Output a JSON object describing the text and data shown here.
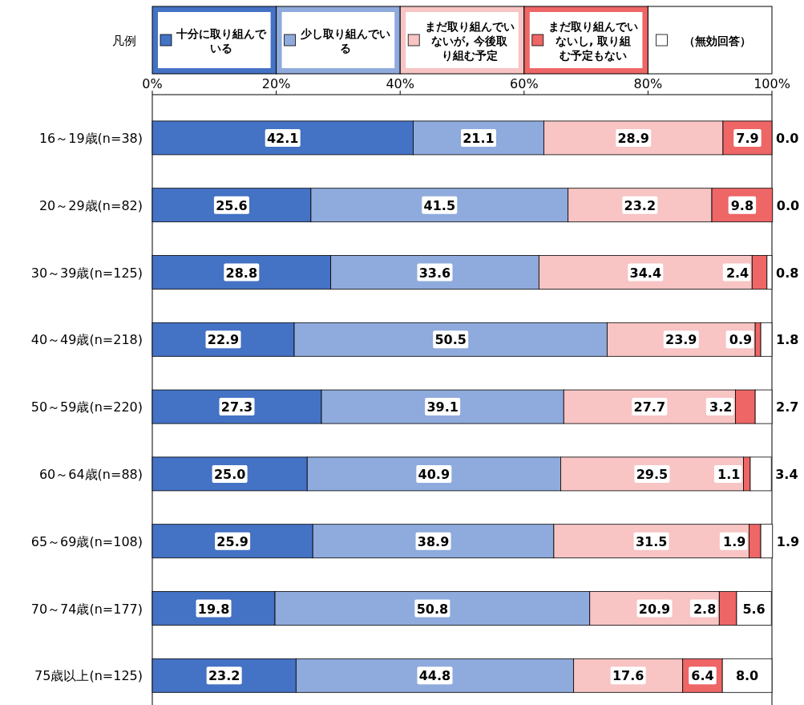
{
  "chart_data": {
    "type": "bar",
    "orientation": "horizontal",
    "stacked": true,
    "legend": "top",
    "legend_title": "凡例",
    "grid": false,
    "categories": [
      "16～19歳(n=38)",
      "20～29歳(n=82)",
      "30～39歳(n=125)",
      "40～49歳(n=218)",
      "50～59歳(n=220)",
      "60～64歳(n=88)",
      "65～69歳(n=108)",
      "70～74歳(n=177)",
      "75歳以上(n=125)"
    ],
    "xlim": [
      0,
      100
    ],
    "xticks": [
      {
        "value": 0,
        "label": "0%"
      },
      {
        "value": 20,
        "label": "20%"
      },
      {
        "value": 40,
        "label": "40%"
      },
      {
        "value": 60,
        "label": "60%"
      },
      {
        "value": 80,
        "label": "80%"
      },
      {
        "value": 100,
        "label": "100%"
      }
    ],
    "series": [
      {
        "name": "十分に取り組んでいる",
        "color": "#4472c4",
        "values": [
          42.1,
          25.6,
          28.8,
          22.9,
          27.3,
          25.0,
          25.9,
          19.8,
          23.2
        ],
        "value_labels": [
          "42.1",
          "25.6",
          "28.8",
          "22.9",
          "27.3",
          "25.0",
          "25.9",
          "19.8",
          "23.2"
        ]
      },
      {
        "name": "少し取り組んでいる",
        "color": "#8faadc",
        "values": [
          21.1,
          41.5,
          33.6,
          50.5,
          39.1,
          40.9,
          38.9,
          50.8,
          44.8
        ],
        "value_labels": [
          "21.1",
          "41.5",
          "33.6",
          "50.5",
          "39.1",
          "40.9",
          "38.9",
          "50.8",
          "44.8"
        ]
      },
      {
        "name": "まだ取り組んでいないが, 今後取り組む予定",
        "color": "#f8c4c4",
        "values": [
          28.9,
          23.2,
          34.4,
          23.9,
          27.7,
          29.5,
          31.5,
          20.9,
          17.6
        ],
        "value_labels": [
          "28.9",
          "23.2",
          "34.4",
          "23.9",
          "27.7",
          "29.5",
          "31.5",
          "20.9",
          "17.6"
        ]
      },
      {
        "name": "まだ取り組んでいないし, 取り組む予定もない",
        "color": "#ee6666",
        "values": [
          7.9,
          9.8,
          2.4,
          0.9,
          3.2,
          1.1,
          1.9,
          2.8,
          6.4
        ],
        "value_labels": [
          "7.9",
          "9.8",
          "2.4",
          "0.9",
          "3.2",
          "1.1",
          "1.9",
          "2.8",
          "6.4"
        ]
      },
      {
        "name": "（無効回答）",
        "color": "#ffffff",
        "values": [
          0.0,
          0.0,
          0.8,
          1.8,
          2.7,
          3.4,
          1.9,
          5.6,
          8.0
        ],
        "value_labels": [
          "0.0",
          "0.0",
          "0.8",
          "1.8",
          "2.7",
          "3.4",
          "1.9",
          "5.6",
          "8.0"
        ]
      }
    ]
  }
}
